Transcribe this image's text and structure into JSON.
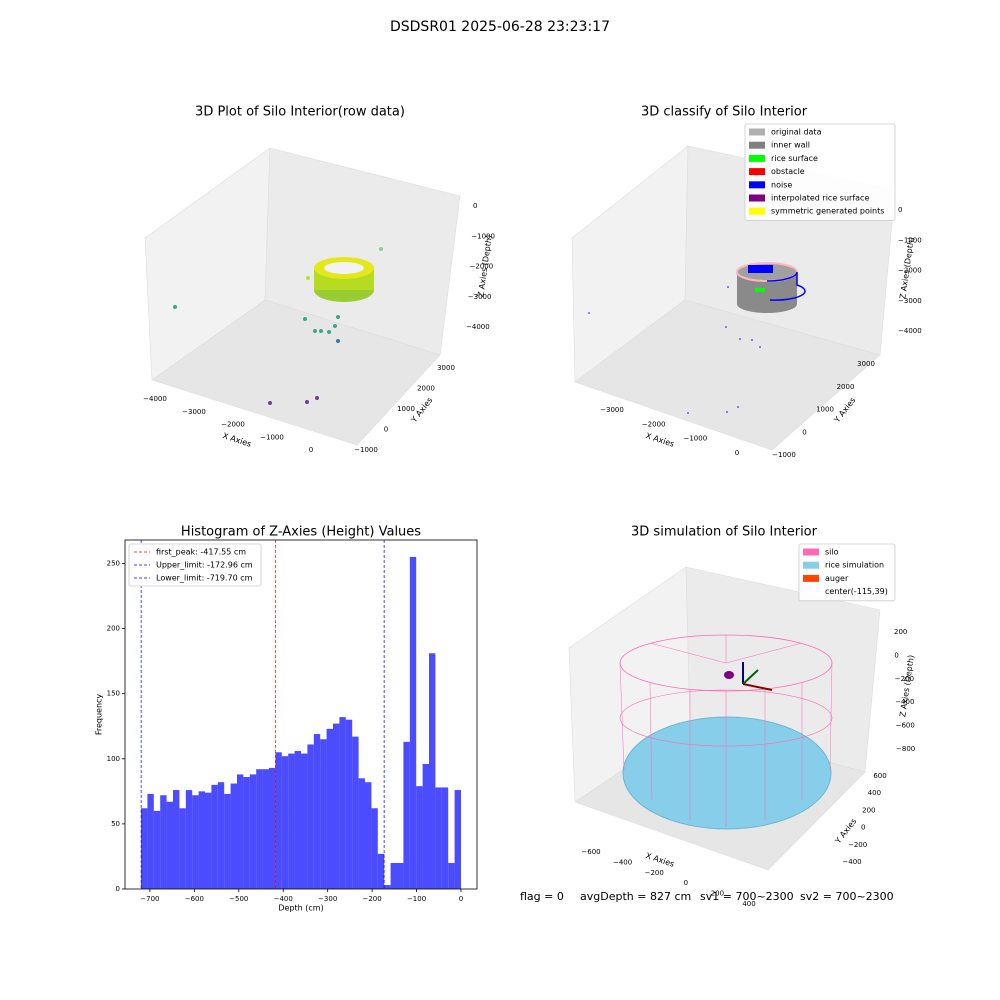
{
  "title": "DSDSR01 2025-06-28 23:23:17",
  "chart_data": [
    {
      "type": "histogram",
      "title": "Histogram of Z-Axies (Height) Values",
      "xlabel": "Depth (cm)",
      "ylabel": "Frequency",
      "bins": [
        -720,
        -705.6,
        -691.2,
        -676.8,
        -662.4,
        -648,
        -633.6,
        -619.2,
        -604.8,
        -590.4,
        -576,
        -561.6,
        -547.2,
        -532.8,
        -518.4,
        -504,
        -489.6,
        -475.2,
        -460.8,
        -446.4,
        -432,
        -417.6,
        -403.2,
        -388.8,
        -374.4,
        -360,
        -345.6,
        -331.2,
        -316.8,
        -302.4,
        -288,
        -273.6,
        -259.2,
        -244.8,
        -230.4,
        -216,
        -201.6,
        -187.2,
        -172.8,
        -158.4,
        -144,
        -129.6,
        -115.2,
        -100.8,
        -86.4,
        -72,
        -57.6,
        -43.2,
        -28.8,
        -14.4,
        0
      ],
      "values": [
        62,
        73,
        60,
        72,
        67,
        76,
        62,
        76,
        72,
        75,
        74,
        80,
        82,
        73,
        81,
        88,
        86,
        88,
        92,
        92,
        93,
        105,
        102,
        104,
        106,
        104,
        111,
        119,
        115,
        123,
        127,
        132,
        130,
        117,
        85,
        82,
        62,
        27,
        3,
        20,
        20,
        113,
        255,
        79,
        96,
        181,
        78,
        78,
        20,
        76
      ],
      "color": "#0000ff",
      "alpha": 0.7,
      "xlim": [
        -756,
        36
      ],
      "ylim": [
        0,
        268
      ],
      "xticks": [
        {
          "value": -700,
          "label": "−700"
        },
        {
          "value": -600,
          "label": "−600"
        },
        {
          "value": -500,
          "label": "−500"
        },
        {
          "value": -400,
          "label": "−400"
        },
        {
          "value": -300,
          "label": "−300"
        },
        {
          "value": -200,
          "label": "−200"
        },
        {
          "value": -100,
          "label": "−100"
        },
        0
      ],
      "yticks": [
        0,
        50,
        100,
        150,
        200,
        250
      ],
      "vlines": [
        {
          "value": -417.55,
          "label": "first_peak: -417.55 cm",
          "color": "#ff0000"
        },
        {
          "value": -172.96,
          "label": "Upper_limit: -172.96 cm",
          "color": "#0000ff"
        },
        {
          "value": -719.7,
          "label": "Lower_limit: -719.70 cm",
          "color": "#0000ff"
        }
      ],
      "legend": "upper left"
    },
    {
      "type": "scatter3d",
      "title": "3D Plot of Silo Interior(row data)",
      "xlabel": "X Axies",
      "ylabel": "Y Axies",
      "zlabel": "Z Axies (Depth)",
      "xticks": [
        {
          "value": -4000,
          "label": "−4000"
        },
        {
          "value": -3000,
          "label": "−3000"
        },
        {
          "value": -2000,
          "label": "−2000"
        },
        {
          "value": -1000,
          "label": "−1000"
        },
        0
      ],
      "yticks": [
        {
          "value": -1000,
          "label": "−1000"
        },
        0,
        1000,
        2000,
        3000
      ],
      "zticks": [
        0,
        {
          "value": -1000,
          "label": "−1000"
        },
        {
          "value": -2000,
          "label": "−2000"
        },
        {
          "value": -3000,
          "label": "−3000"
        },
        {
          "value": -4000,
          "label": "−4000"
        }
      ]
    },
    {
      "type": "scatter3d",
      "title": "3D classify of Silo Interior",
      "xlabel": "X Axies",
      "ylabel": "Y Axies",
      "zlabel": "Z Axies (Depth)",
      "xticks": [
        {
          "value": -3000,
          "label": "−3000"
        },
        {
          "value": -2000,
          "label": "−2000"
        },
        {
          "value": -1000,
          "label": "−1000"
        },
        0
      ],
      "yticks": [
        {
          "value": -1000,
          "label": "−1000"
        },
        0,
        1000,
        2000,
        3000
      ],
      "zticks": [
        0,
        {
          "value": -1000,
          "label": "−1000"
        },
        {
          "value": -2000,
          "label": "−2000"
        },
        {
          "value": -3000,
          "label": "−3000"
        },
        {
          "value": -4000,
          "label": "−4000"
        }
      ],
      "legend": [
        {
          "name": "original data",
          "color": "#b0b0b0"
        },
        {
          "name": "inner wall",
          "color": "#808080"
        },
        {
          "name": "rice surface",
          "color": "#00ff00"
        },
        {
          "name": "obstacle",
          "color": "#ff0000"
        },
        {
          "name": "noise",
          "color": "#0000ff"
        },
        {
          "name": "interpolated rice surface",
          "color": "#800080"
        },
        {
          "name": "symmetric generated points",
          "color": "#ffff00"
        }
      ]
    },
    {
      "type": "scatter3d",
      "title": "3D simulation of Silo Interior",
      "xlabel": "X Axies",
      "ylabel": "Y Axies",
      "zlabel": "Z Axies (Depth)",
      "xticks": [
        {
          "value": -600,
          "label": "−600"
        },
        {
          "value": -400,
          "label": "−400"
        },
        {
          "value": -200,
          "label": "−200"
        },
        0,
        200,
        400
      ],
      "yticks": [
        {
          "value": -400,
          "label": "−400"
        },
        {
          "value": -200,
          "label": "−200"
        },
        0,
        200,
        400,
        600
      ],
      "zticks": [
        200,
        0,
        {
          "value": -200,
          "label": "−200"
        },
        {
          "value": -400,
          "label": "−400"
        },
        {
          "value": -600,
          "label": "−600"
        },
        {
          "value": -800,
          "label": "−800"
        }
      ],
      "legend": [
        {
          "name": "silo",
          "color": "#ff69b4"
        },
        {
          "name": "rice simulation",
          "color": "#87ceeb"
        },
        {
          "name": "auger",
          "color": "#ff4500"
        },
        {
          "name": "center(-115,39)"
        }
      ]
    }
  ],
  "footer": [
    "flag = 0",
    "avgDepth = 827 cm",
    "sv1 = 700~2300",
    "sv2 = 700~2300"
  ]
}
